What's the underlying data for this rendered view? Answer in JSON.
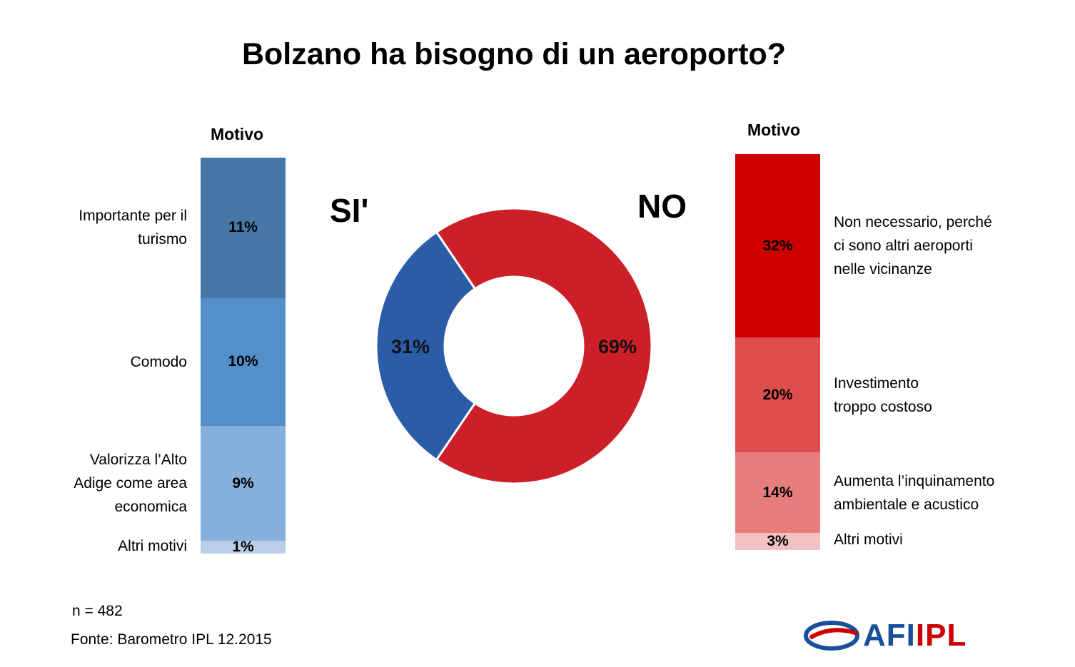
{
  "title": "Bolzano ha bisogno di un aeroporto?",
  "left": {
    "header": "Motivo",
    "answer": "SI'",
    "items": [
      {
        "label": "Importante per il turismo",
        "lines": [
          "Importante per il",
          "turismo"
        ],
        "value": 11,
        "text": "11%",
        "color": "#4777a6"
      },
      {
        "label": "Comodo",
        "lines": [
          "Comodo"
        ],
        "value": 10,
        "text": "10%",
        "color": "#538fc8"
      },
      {
        "label": "Valorizza l’Alto Adige come area economica",
        "lines": [
          "Valorizza l’Alto",
          "Adige come area",
          "economica"
        ],
        "value": 9,
        "text": "9%",
        "color": "#88b0df"
      },
      {
        "label": "Altri motivi",
        "lines": [
          "Altri motivi"
        ],
        "value": 1,
        "text": "1%",
        "color": "#b9cfe9"
      }
    ]
  },
  "right": {
    "header": "Motivo",
    "answer": "NO",
    "items": [
      {
        "label": "Non necessario, perché ci sono altri aeroporti nelle vicinanze",
        "lines": [
          "Non necessario, perché",
          "ci sono altri aeroporti",
          "nelle vicinanze"
        ],
        "value": 32,
        "text": "32%",
        "color": "#cc0000"
      },
      {
        "label": "Investimento troppo costoso",
        "lines": [
          "Investimento",
          "troppo costoso"
        ],
        "value": 20,
        "text": "20%",
        "color": "#de4d4d"
      },
      {
        "label": "Aumenta l’inquinamento ambientale e acustico",
        "lines": [
          "Aumenta l’inquinamento",
          "ambientale e acustico"
        ],
        "value": 14,
        "text": "14%",
        "color": "#e87d7d"
      },
      {
        "label": "Altri motivi",
        "lines": [
          "Altri motivi"
        ],
        "value": 3,
        "text": "3%",
        "color": "#f2c2c2"
      }
    ]
  },
  "chart_data": {
    "type": "pie",
    "variant": "donut",
    "title": "Bolzano ha bisogno di un aeroporto?",
    "slices": [
      {
        "name": "SI'",
        "value": 31,
        "label": "31%",
        "color": "#2b5ca8"
      },
      {
        "name": "NO",
        "value": 69,
        "label": "69%",
        "color": "#cc1f27"
      }
    ]
  },
  "footer": {
    "n": "n = 482",
    "source": "Fonte: Barometro IPL 12.2015"
  },
  "logo": {
    "text": "AFIIPL",
    "part1": "AFI",
    "part2": "IPL",
    "color1": "#1a4f9c",
    "color2": "#cc0000"
  }
}
